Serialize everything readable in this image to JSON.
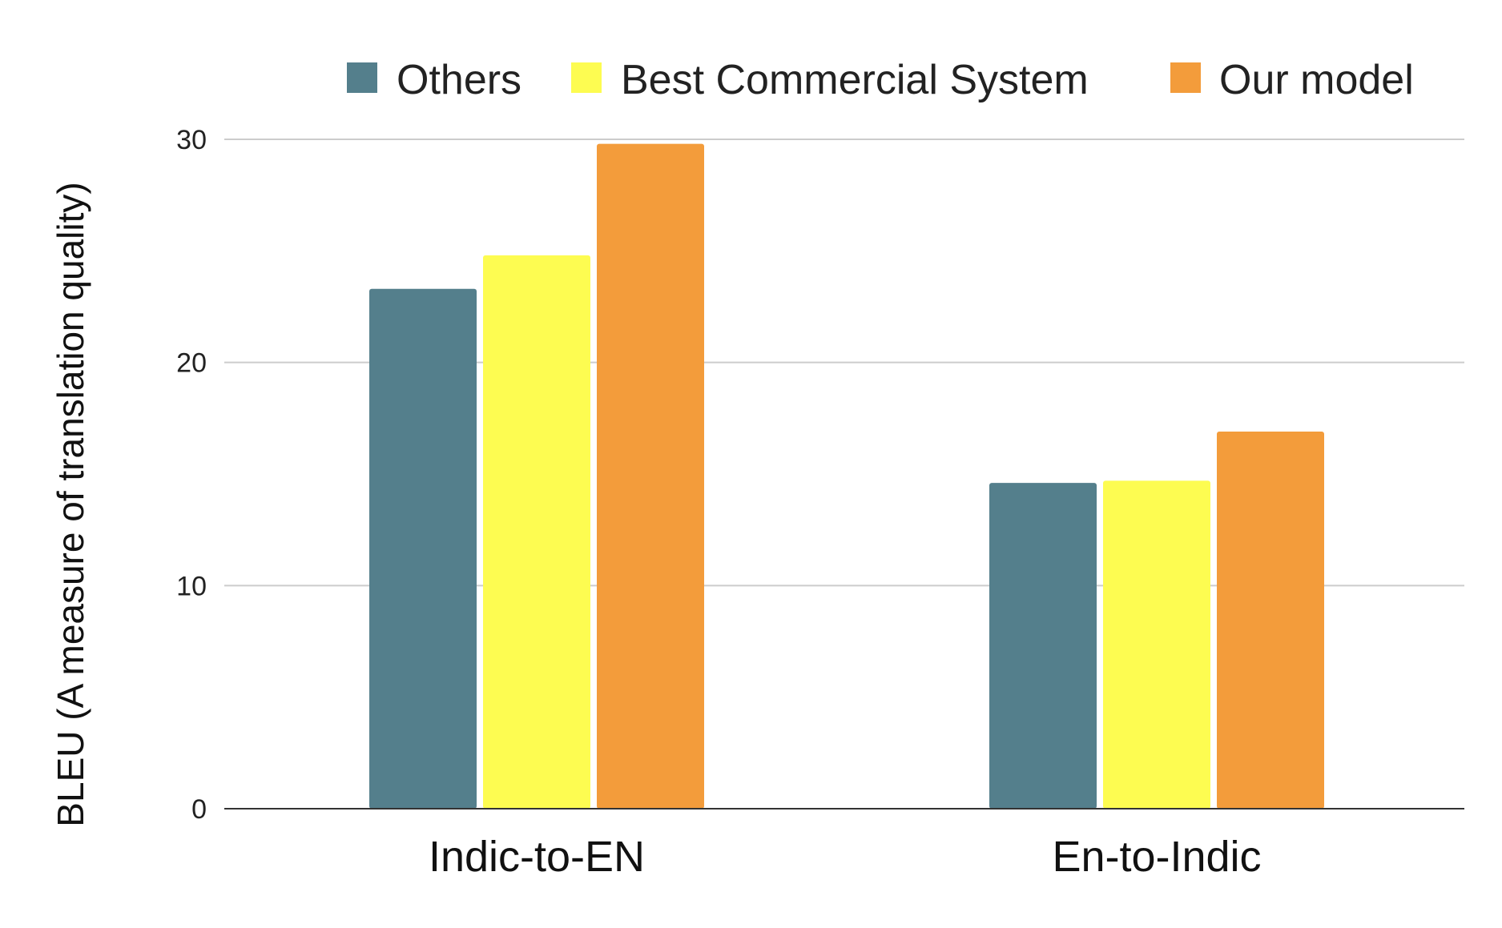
{
  "chart_data": {
    "type": "bar",
    "title": "",
    "xlabel": "",
    "ylabel": "BLEU (A measure of translation quality)",
    "categories": [
      "Indic-to-EN",
      "En-to-Indic"
    ],
    "series": [
      {
        "name": "Others",
        "values": [
          23.3,
          14.6
        ],
        "color": "#547f8c"
      },
      {
        "name": "Best Commercial System",
        "values": [
          24.8,
          14.7
        ],
        "color": "#fdfc51"
      },
      {
        "name": "Our model",
        "values": [
          29.8,
          16.9
        ],
        "color": "#f39c3b"
      }
    ],
    "ylim": [
      0,
      30
    ],
    "yticks": [
      0,
      10,
      20,
      30
    ],
    "grid": true,
    "legend_position": "top"
  }
}
